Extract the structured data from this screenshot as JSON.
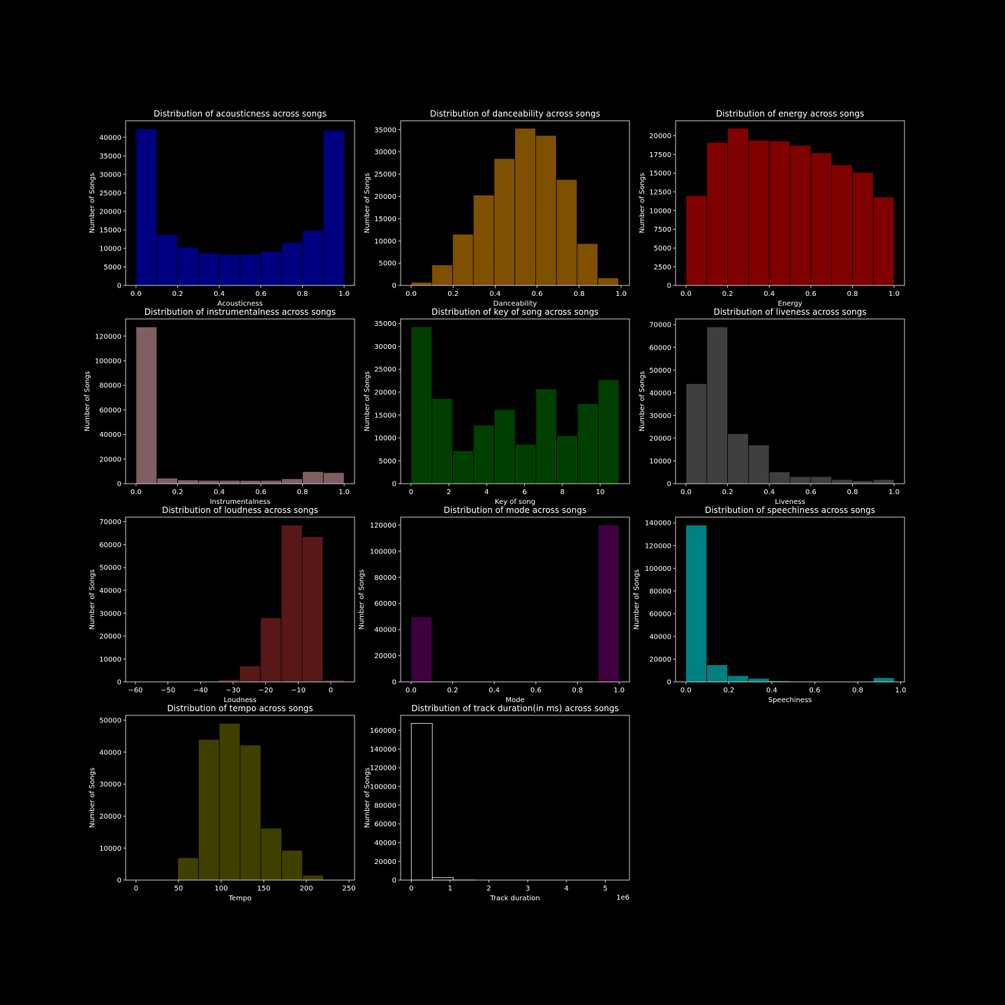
{
  "figure": {
    "background": "#000000",
    "axis_color": "#ffffff",
    "text_color": "#ffffff"
  },
  "chart_data": [
    {
      "type": "bar",
      "title": "Distribution of acousticness across songs",
      "xlabel": "Acousticness",
      "ylabel": "Number of Songs",
      "color": "#000080",
      "xlim": [
        -0.05,
        1.05
      ],
      "ylim": [
        0,
        44500
      ],
      "xticks": [
        0.0,
        0.2,
        0.4,
        0.6,
        0.8,
        1.0
      ],
      "xtick_labels": [
        "0.0",
        "0.2",
        "0.4",
        "0.6",
        "0.8",
        "1.0"
      ],
      "yticks": [
        0,
        5000,
        10000,
        15000,
        20000,
        25000,
        30000,
        35000,
        40000
      ],
      "ytick_labels": [
        "0",
        "5000",
        "10000",
        "15000",
        "20000",
        "25000",
        "30000",
        "35000",
        "40000"
      ],
      "bin_edges": [
        0.0,
        0.1,
        0.2,
        0.3,
        0.4,
        0.5,
        0.6,
        0.7,
        0.8,
        0.9,
        1.0
      ],
      "values": [
        42300,
        13700,
        10300,
        8700,
        8400,
        8400,
        9200,
        11600,
        14900,
        41900
      ]
    },
    {
      "type": "bar",
      "title": "Distribution of danceability across songs",
      "xlabel": "Danceability",
      "ylabel": "Number of Songs",
      "color": "#7f5000",
      "xlim": [
        -0.05,
        1.04
      ],
      "ylim": [
        0,
        37000
      ],
      "xticks": [
        0.0,
        0.2,
        0.4,
        0.6,
        0.8,
        1.0
      ],
      "xtick_labels": [
        "0.0",
        "0.2",
        "0.4",
        "0.6",
        "0.8",
        "1.0"
      ],
      "yticks": [
        0,
        5000,
        10000,
        15000,
        20000,
        25000,
        30000,
        35000
      ],
      "ytick_labels": [
        "0",
        "5000",
        "10000",
        "15000",
        "20000",
        "25000",
        "30000",
        "35000"
      ],
      "bin_edges": [
        0.0,
        0.0988,
        0.1976,
        0.2964,
        0.3952,
        0.494,
        0.5928,
        0.6916,
        0.7904,
        0.8892,
        0.988
      ],
      "values": [
        700,
        4600,
        11500,
        20300,
        28500,
        35300,
        33700,
        23800,
        9400,
        1700
      ]
    },
    {
      "type": "bar",
      "title": "Distribution of energy across songs",
      "xlabel": "Energy",
      "ylabel": "Number of Songs",
      "color": "#800000",
      "xlim": [
        -0.05,
        1.05
      ],
      "ylim": [
        0,
        22000
      ],
      "xticks": [
        0.0,
        0.2,
        0.4,
        0.6,
        0.8,
        1.0
      ],
      "xtick_labels": [
        "0.0",
        "0.2",
        "0.4",
        "0.6",
        "0.8",
        "1.0"
      ],
      "yticks": [
        0,
        2500,
        5000,
        7500,
        10000,
        12500,
        15000,
        17500,
        20000
      ],
      "ytick_labels": [
        "0",
        "2500",
        "5000",
        "7500",
        "10000",
        "12500",
        "15000",
        "17500",
        "20000"
      ],
      "bin_edges": [
        0.0,
        0.1,
        0.2,
        0.3,
        0.4,
        0.5,
        0.6,
        0.7,
        0.8,
        0.9,
        1.0
      ],
      "values": [
        12000,
        19100,
        21000,
        19400,
        19300,
        18700,
        17700,
        16100,
        15100,
        11800
      ]
    },
    {
      "type": "bar",
      "title": "Distribution of instrumentalness across songs",
      "xlabel": "Instrumentalness",
      "ylabel": "Number of Songs",
      "color": "#7f5f62",
      "xlim": [
        -0.05,
        1.05
      ],
      "ylim": [
        0,
        134000
      ],
      "xticks": [
        0.0,
        0.2,
        0.4,
        0.6,
        0.8,
        1.0
      ],
      "xtick_labels": [
        "0.0",
        "0.2",
        "0.4",
        "0.6",
        "0.8",
        "1.0"
      ],
      "yticks": [
        0,
        20000,
        40000,
        60000,
        80000,
        100000,
        120000
      ],
      "ytick_labels": [
        "0",
        "20000",
        "40000",
        "60000",
        "80000",
        "100000",
        "120000"
      ],
      "bin_edges": [
        0.0,
        0.1,
        0.2,
        0.3,
        0.4,
        0.5,
        0.6,
        0.7,
        0.8,
        0.9,
        1.0
      ],
      "values": [
        127500,
        4500,
        3000,
        2700,
        2700,
        2600,
        2700,
        4000,
        9800,
        9000
      ]
    },
    {
      "type": "bar",
      "title": "Distribution of key of song across songs",
      "xlabel": "Key of song",
      "ylabel": "Number of Songs",
      "color": "#003f00",
      "xlim": [
        -0.55,
        11.55
      ],
      "ylim": [
        0,
        36000
      ],
      "xticks": [
        0,
        2,
        4,
        6,
        8,
        10
      ],
      "xtick_labels": [
        "0",
        "2",
        "4",
        "6",
        "8",
        "10"
      ],
      "yticks": [
        0,
        5000,
        10000,
        15000,
        20000,
        25000,
        30000,
        35000
      ],
      "ytick_labels": [
        "0",
        "5000",
        "10000",
        "15000",
        "20000",
        "25000",
        "30000",
        "35000"
      ],
      "bin_edges": [
        0.0,
        1.1,
        2.2,
        3.3,
        4.4,
        5.5,
        6.6,
        7.7,
        8.8,
        9.9,
        11.0
      ],
      "values": [
        34300,
        18600,
        7200,
        12800,
        16200,
        8600,
        20700,
        10500,
        17500,
        22700
      ]
    },
    {
      "type": "bar",
      "title": "Distribution of liveness across songs",
      "xlabel": "Liveness",
      "ylabel": "Number of Songs",
      "color": "#3f3f3f",
      "xlim": [
        -0.05,
        1.05
      ],
      "ylim": [
        0,
        72500
      ],
      "xticks": [
        0.0,
        0.2,
        0.4,
        0.6,
        0.8,
        1.0
      ],
      "xtick_labels": [
        "0.0",
        "0.2",
        "0.4",
        "0.6",
        "0.8",
        "1.0"
      ],
      "yticks": [
        0,
        10000,
        20000,
        30000,
        40000,
        50000,
        60000,
        70000
      ],
      "ytick_labels": [
        "0",
        "10000",
        "20000",
        "30000",
        "40000",
        "50000",
        "60000",
        "70000"
      ],
      "bin_edges": [
        0.0,
        0.1,
        0.2,
        0.3,
        0.4,
        0.5,
        0.6,
        0.7,
        0.8,
        0.9,
        1.0
      ],
      "values": [
        44000,
        69000,
        22000,
        17000,
        5200,
        3100,
        3100,
        1800,
        1300,
        1800
      ]
    },
    {
      "type": "bar",
      "title": "Distribution of loudness across songs",
      "xlabel": "Loudness",
      "ylabel": "Number of Songs",
      "color": "#581818",
      "xlim": [
        -63,
        7.3
      ],
      "ylim": [
        0,
        72000
      ],
      "xticks": [
        -60,
        -50,
        -40,
        -30,
        -20,
        -10,
        0
      ],
      "xtick_labels": [
        "−60",
        "−50",
        "−40",
        "−30",
        "−20",
        "−10",
        "0"
      ],
      "yticks": [
        0,
        10000,
        20000,
        30000,
        40000,
        50000,
        60000,
        70000
      ],
      "ytick_labels": [
        "0",
        "10000",
        "20000",
        "30000",
        "40000",
        "50000",
        "60000",
        "70000"
      ],
      "bin_edges": [
        -60.0,
        -53.6,
        -47.2,
        -40.8,
        -34.4,
        -28.0,
        -21.6,
        -15.2,
        -8.8,
        -2.4,
        4.0
      ],
      "values": [
        0,
        0,
        0,
        150,
        1000,
        7000,
        28000,
        68500,
        63500,
        800
      ]
    },
    {
      "type": "bar",
      "title": "Distribution of mode across songs",
      "xlabel": "Mode",
      "ylabel": "Number of Songs",
      "color": "#3f003f",
      "xlim": [
        -0.05,
        1.05
      ],
      "ylim": [
        0,
        126000
      ],
      "xticks": [
        0.0,
        0.2,
        0.4,
        0.6,
        0.8,
        1.0
      ],
      "xtick_labels": [
        "0.0",
        "0.2",
        "0.4",
        "0.6",
        "0.8",
        "1.0"
      ],
      "yticks": [
        0,
        20000,
        40000,
        60000,
        80000,
        100000,
        120000
      ],
      "ytick_labels": [
        "0",
        "20000",
        "40000",
        "60000",
        "80000",
        "100000",
        "120000"
      ],
      "bin_edges": [
        0.0,
        0.1,
        0.2,
        0.3,
        0.4,
        0.5,
        0.6,
        0.7,
        0.8,
        0.9,
        1.0
      ],
      "values": [
        49700,
        0,
        0,
        0,
        0,
        0,
        0,
        0,
        0,
        120000
      ]
    },
    {
      "type": "bar",
      "title": "Distribution of speechiness across songs",
      "xlabel": "Speechiness",
      "ylabel": "Number of Songs",
      "color": "#008080",
      "xlim": [
        -0.048,
        1.018
      ],
      "ylim": [
        0,
        145000
      ],
      "xticks": [
        0.0,
        0.2,
        0.4,
        0.6,
        0.8,
        1.0
      ],
      "xtick_labels": [
        "0.0",
        "0.2",
        "0.4",
        "0.6",
        "0.8",
        "1.0"
      ],
      "yticks": [
        0,
        20000,
        40000,
        60000,
        80000,
        100000,
        120000,
        140000
      ],
      "ytick_labels": [
        "0",
        "20000",
        "40000",
        "60000",
        "80000",
        "100000",
        "120000",
        "140000"
      ],
      "bin_edges": [
        0.0,
        0.097,
        0.194,
        0.291,
        0.388,
        0.485,
        0.582,
        0.679,
        0.776,
        0.873,
        0.97
      ],
      "values": [
        138000,
        15000,
        5500,
        3000,
        1000,
        400,
        300,
        250,
        300,
        3700
      ]
    },
    {
      "type": "bar",
      "title": "Distribution of tempo across songs",
      "xlabel": "Tempo",
      "ylabel": "Number of Songs",
      "color": "#3f3f00",
      "xlim": [
        -12.2,
        256.6
      ],
      "ylim": [
        0,
        51500
      ],
      "xticks": [
        0,
        50,
        100,
        150,
        200,
        250
      ],
      "xtick_labels": [
        "0",
        "50",
        "100",
        "150",
        "200",
        "250"
      ],
      "yticks": [
        0,
        10000,
        20000,
        30000,
        40000,
        50000
      ],
      "ytick_labels": [
        "0",
        "10000",
        "20000",
        "30000",
        "40000",
        "50000"
      ],
      "bin_edges": [
        0.0,
        24.44,
        48.88,
        73.32,
        97.76,
        122.2,
        146.64,
        171.08,
        195.52,
        219.96,
        244.4
      ],
      "values": [
        0,
        0,
        7000,
        44000,
        49000,
        42200,
        16200,
        9300,
        1500,
        0
      ]
    },
    {
      "type": "bar",
      "title": "Distribution of track duration(in ms) across songs",
      "xlabel": "Track duration",
      "ylabel": "Number of Songs",
      "color": "#000000",
      "edge_color": "#ffffff",
      "offset_label": "1e6",
      "xlim": [
        -275000,
        5625000
      ],
      "ylim": [
        0,
        176000
      ],
      "xticks": [
        0,
        1000000,
        2000000,
        3000000,
        4000000,
        5000000
      ],
      "xtick_labels": [
        "0",
        "1",
        "2",
        "3",
        "4",
        "5"
      ],
      "yticks": [
        0,
        20000,
        40000,
        60000,
        80000,
        100000,
        120000,
        140000,
        160000
      ],
      "ytick_labels": [
        "0",
        "20000",
        "40000",
        "60000",
        "80000",
        "100000",
        "120000",
        "140000",
        "160000"
      ],
      "bin_edges": [
        0,
        540000,
        1080000,
        1620000,
        2160000,
        2700000,
        3240000,
        3780000,
        4320000,
        4860000,
        5400000
      ],
      "values": [
        167500,
        2500,
        100,
        0,
        0,
        0,
        0,
        0,
        0,
        0
      ]
    }
  ]
}
